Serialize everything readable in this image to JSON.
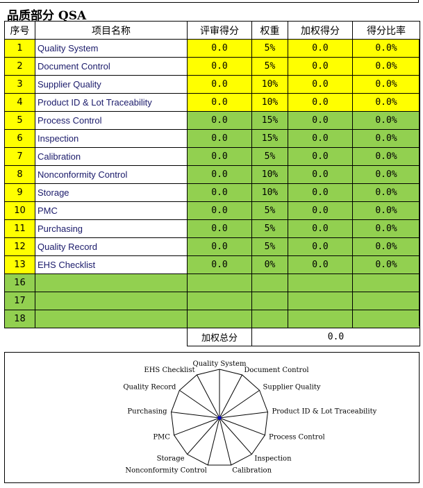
{
  "title": "品质部分 QSA",
  "headers": [
    "序号",
    "项目名称",
    "评审得分",
    "权重",
    "加权得分",
    "得分比率"
  ],
  "rows": [
    {
      "no": "1",
      "name": "Quality System",
      "score": "0.0",
      "weight": "5%",
      "weighted": "0.0",
      "ratio": "0.0%",
      "color": "yellow"
    },
    {
      "no": "2",
      "name": "Document Control",
      "score": "0.0",
      "weight": "5%",
      "weighted": "0.0",
      "ratio": "0.0%",
      "color": "yellow"
    },
    {
      "no": "3",
      "name": "Supplier Quality",
      "score": "0.0",
      "weight": "10%",
      "weighted": "0.0",
      "ratio": "0.0%",
      "color": "yellow"
    },
    {
      "no": "4",
      "name": "Product ID & Lot Traceability",
      "score": "0.0",
      "weight": "10%",
      "weighted": "0.0",
      "ratio": "0.0%",
      "color": "yellow"
    },
    {
      "no": "5",
      "name": "Process Control",
      "score": "0.0",
      "weight": "15%",
      "weighted": "0.0",
      "ratio": "0.0%",
      "color": "green"
    },
    {
      "no": "6",
      "name": "Inspection",
      "score": "0.0",
      "weight": "15%",
      "weighted": "0.0",
      "ratio": "0.0%",
      "color": "green"
    },
    {
      "no": "7",
      "name": "Calibration",
      "score": "0.0",
      "weight": "5%",
      "weighted": "0.0",
      "ratio": "0.0%",
      "color": "green"
    },
    {
      "no": "8",
      "name": "Nonconformity Control",
      "score": "0.0",
      "weight": "10%",
      "weighted": "0.0",
      "ratio": "0.0%",
      "color": "green"
    },
    {
      "no": "9",
      "name": "Storage",
      "score": "0.0",
      "weight": "10%",
      "weighted": "0.0",
      "ratio": "0.0%",
      "color": "green"
    },
    {
      "no": "10",
      "name": "PMC",
      "score": "0.0",
      "weight": "5%",
      "weighted": "0.0",
      "ratio": "0.0%",
      "color": "green"
    },
    {
      "no": "11",
      "name": "Purchasing",
      "score": "0.0",
      "weight": "5%",
      "weighted": "0.0",
      "ratio": "0.0%",
      "color": "green"
    },
    {
      "no": "12",
      "name": "Quality Record",
      "score": "0.0",
      "weight": "5%",
      "weighted": "0.0",
      "ratio": "0.0%",
      "color": "green"
    },
    {
      "no": "13",
      "name": "EHS Checklist",
      "score": "0.0",
      "weight": "0%",
      "weighted": "0.0",
      "ratio": "0.0%",
      "color": "green"
    },
    {
      "no": "16",
      "name": "",
      "score": "",
      "weight": "",
      "weighted": "",
      "ratio": "",
      "color": "empty"
    },
    {
      "no": "17",
      "name": "",
      "score": "",
      "weight": "",
      "weighted": "",
      "ratio": "",
      "color": "empty"
    },
    {
      "no": "18",
      "name": "",
      "score": "",
      "weight": "",
      "weighted": "",
      "ratio": "",
      "color": "empty"
    }
  ],
  "total": {
    "label": "加权总分",
    "value": "0.0"
  },
  "colors": {
    "yellow": "#ffff00",
    "green": "#92d050",
    "marker": "#0000cc"
  },
  "chart_data": {
    "type": "radar",
    "categories": [
      "Quality System",
      "Document Control",
      "Supplier Quality",
      "Product ID & Lot Traceability",
      "Process Control",
      "Inspection",
      "Calibration",
      "Nonconformity Control",
      "Storage",
      "PMC",
      "Purchasing",
      "Quality Record",
      "EHS Checklist"
    ],
    "values": [
      0,
      0,
      0,
      0,
      0,
      0,
      0,
      0,
      0,
      0,
      0,
      0,
      0
    ]
  }
}
